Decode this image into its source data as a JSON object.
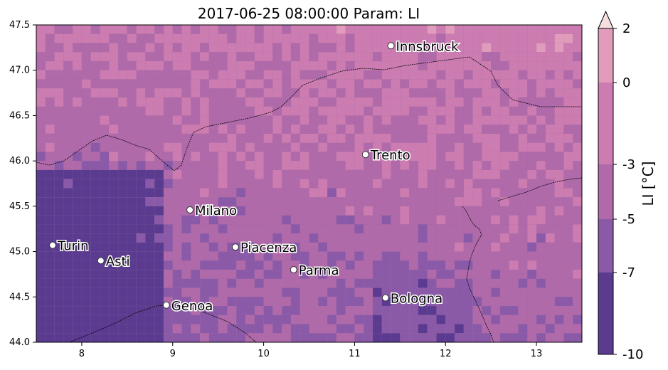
{
  "title": "2017-06-25 08:00:00 Param: LI",
  "map": {
    "x_ticks": [
      "8",
      "9",
      "10",
      "11",
      "12",
      "13"
    ],
    "x_tick_values": [
      8,
      9,
      10,
      11,
      12,
      13
    ],
    "y_ticks": [
      "44.0",
      "44.5",
      "45.0",
      "45.5",
      "46.0",
      "46.5",
      "47.0",
      "47.5"
    ],
    "y_tick_values": [
      44.0,
      44.5,
      45.0,
      45.5,
      46.0,
      46.5,
      47.0,
      47.5
    ],
    "lon_range": [
      7.5,
      13.5
    ],
    "lat_range": [
      44.0,
      47.5
    ],
    "cities": [
      {
        "name": "Innsbruck",
        "lon": 11.4,
        "lat": 47.27
      },
      {
        "name": "Trento",
        "lon": 11.12,
        "lat": 46.07
      },
      {
        "name": "Milano",
        "lon": 9.19,
        "lat": 45.46
      },
      {
        "name": "Piacenza",
        "lon": 9.69,
        "lat": 45.05
      },
      {
        "name": "Turin",
        "lon": 7.68,
        "lat": 45.07
      },
      {
        "name": "Asti",
        "lon": 8.21,
        "lat": 44.9
      },
      {
        "name": "Parma",
        "lon": 10.33,
        "lat": 44.8
      },
      {
        "name": "Bologna",
        "lon": 11.34,
        "lat": 44.49
      },
      {
        "name": "Genoa",
        "lon": 8.93,
        "lat": 44.41
      }
    ]
  },
  "colorbar": {
    "label": "LI  [°C]",
    "ticks": [
      "2",
      "0",
      "-3",
      "-5",
      "-7",
      "-10"
    ],
    "levels": [
      -10,
      -7,
      -5,
      -3,
      0,
      2
    ],
    "colors": [
      "#5a3b90",
      "#8a5aa8",
      "#b06aaa",
      "#cc7cb0",
      "#e19bbb",
      "#f7dede"
    ]
  }
}
